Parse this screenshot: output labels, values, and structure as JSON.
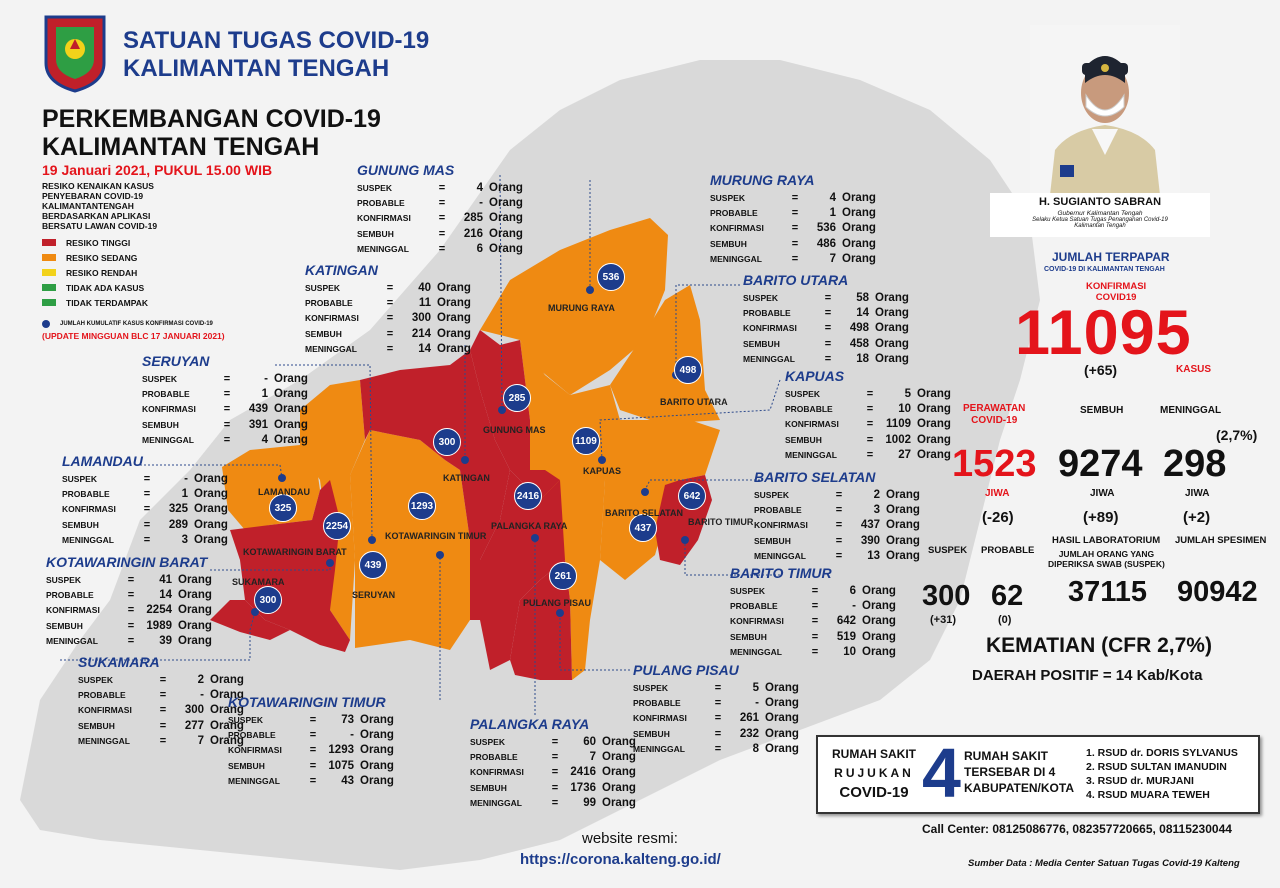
{
  "header": {
    "org_line1": "SATUAN TUGAS COVID-19",
    "org_line2": "KALIMANTAN TENGAH",
    "title_line1": "PERKEMBANGAN COVID-19",
    "title_line2": "KALIMANTAN TENGAH",
    "date": "19 Januari 2021, PUKUL 15.00 WIB"
  },
  "legend": {
    "desc": [
      "RESIKO KENAIKAN KASUS",
      "PENYEBARAN COVID-19",
      "KALIMANTANTENGAH",
      "BERDASARKAN APLIKASI",
      "BERSATU LAWAN COVID-19"
    ],
    "items": [
      {
        "label": "RESIKO TINGGI",
        "color": "#c0202a"
      },
      {
        "label": "RESIKO SEDANG",
        "color": "#ef8a12"
      },
      {
        "label": "RESIKO RENDAH",
        "color": "#f2d21a"
      },
      {
        "label": "TIDAK ADA KASUS",
        "color": "#2e9e44"
      },
      {
        "label": "TIDAK TERDAMPAK",
        "color": "#2e9e44"
      }
    ],
    "dot_note": "JUMLAH KUMULATIF KASUS KONFIRMASI COVID-19",
    "update_note": "(UPDATE MINGGUAN BLC 17 JANUARI 2021)"
  },
  "stat_labels": {
    "suspek": "SUSPEK",
    "probable": "PROBABLE",
    "konfirmasi": "KONFIRMASI",
    "sembuh": "SEMBUH",
    "meninggal": "MENINGGAL",
    "eq": "=",
    "unit": "Orang"
  },
  "districts": [
    {
      "name": "GUNUNG MAS",
      "suspek": "4",
      "probable": "-",
      "konfirmasi": "285",
      "sembuh": "216",
      "meninggal": "6",
      "bubble": "285",
      "map_label": "GUNUNG MAS",
      "risk": "tinggi"
    },
    {
      "name": "MURUNG RAYA",
      "suspek": "4",
      "probable": "1",
      "konfirmasi": "536",
      "sembuh": "486",
      "meninggal": "7",
      "bubble": "536",
      "map_label": "MURUNG RAYA",
      "risk": "sedang"
    },
    {
      "name": "KATINGAN",
      "suspek": "40",
      "probable": "11",
      "konfirmasi": "300",
      "sembuh": "214",
      "meninggal": "14",
      "bubble": "300",
      "map_label": "KATINGAN",
      "risk": "tinggi"
    },
    {
      "name": "BARITO UTARA",
      "suspek": "58",
      "probable": "14",
      "konfirmasi": "498",
      "sembuh": "458",
      "meninggal": "18",
      "bubble": "498",
      "map_label": "BARITO UTARA",
      "risk": "sedang"
    },
    {
      "name": "SERUYAN",
      "suspek": "-",
      "probable": "1",
      "konfirmasi": "439",
      "sembuh": "391",
      "meninggal": "4",
      "bubble": "439",
      "map_label": "SERUYAN",
      "risk": "sedang"
    },
    {
      "name": "KAPUAS",
      "suspek": "5",
      "probable": "10",
      "konfirmasi": "1109",
      "sembuh": "1002",
      "meninggal": "27",
      "bubble": "1109",
      "map_label": "KAPUAS",
      "risk": "sedang"
    },
    {
      "name": "LAMANDAU",
      "suspek": "-",
      "probable": "1",
      "konfirmasi": "325",
      "sembuh": "289",
      "meninggal": "3",
      "bubble": "325",
      "map_label": "LAMANDAU",
      "risk": "sedang"
    },
    {
      "name": "BARITO SELATAN",
      "suspek": "2",
      "probable": "3",
      "konfirmasi": "437",
      "sembuh": "390",
      "meninggal": "13",
      "bubble": "437",
      "map_label": "BARITO SELATAN",
      "risk": "sedang"
    },
    {
      "name": "KOTAWARINGIN BARAT",
      "suspek": "41",
      "probable": "14",
      "konfirmasi": "2254",
      "sembuh": "1989",
      "meninggal": "39",
      "bubble": "2254",
      "map_label": "KOTAWARINGIN BARAT",
      "risk": "tinggi"
    },
    {
      "name": "BARITO TIMUR",
      "suspek": "6",
      "probable": "-",
      "konfirmasi": "642",
      "sembuh": "519",
      "meninggal": "10",
      "bubble": "642",
      "map_label": "BARITO TIMUR",
      "risk": "tinggi"
    },
    {
      "name": "SUKAMARA",
      "suspek": "2",
      "probable": "-",
      "konfirmasi": "300",
      "sembuh": "277",
      "meninggal": "7",
      "bubble": "300",
      "map_label": "SUKAMARA",
      "risk": "tinggi"
    },
    {
      "name": "PULANG PISAU",
      "suspek": "5",
      "probable": "-",
      "konfirmasi": "261",
      "sembuh": "232",
      "meninggal": "8",
      "bubble": "261",
      "map_label": "PULANG PISAU",
      "risk": "tinggi"
    },
    {
      "name": "KOTAWARINGIN TIMUR",
      "suspek": "73",
      "probable": "-",
      "konfirmasi": "1293",
      "sembuh": "1075",
      "meninggal": "43",
      "bubble": "1293",
      "map_label": "KOTAWARINGIN TIMUR",
      "risk": "sedang"
    },
    {
      "name": "PALANGKA RAYA",
      "suspek": "60",
      "probable": "7",
      "konfirmasi": "2416",
      "sembuh": "1736",
      "meninggal": "99",
      "bubble": "2416",
      "map_label": "PALANGKA RAYA",
      "risk": "tinggi"
    }
  ],
  "governor": {
    "name": "H. SUGIANTO SABRAN",
    "title1": "Gubernur Kalimantan Tengah",
    "title2": "Selaku Ketua Satuan Tugas Penanganan Covid-19",
    "title3": "Kalimantan Tengah"
  },
  "summary": {
    "jumlah_title": "JUMLAH TERPAPAR",
    "jumlah_sub": "COVID-19 DI KALIMANTAN TENGAH",
    "konfirmasi_label1": "KONFIRMASI",
    "konfirmasi_label2": "COVID19",
    "konfirmasi_value": "11095",
    "konfirmasi_delta": "(+65)",
    "kasus_label": "KASUS",
    "perawatan_label1": "PERAWATAN",
    "perawatan_label2": "COVID-19",
    "perawatan_value": "1523",
    "perawatan_unit": "JIWA",
    "perawatan_delta": "(-26)",
    "sembuh_label": "SEMBUH",
    "sembuh_value": "9274",
    "sembuh_unit": "JIWA",
    "sembuh_delta": "(+89)",
    "meninggal_label": "MENINGGAL",
    "meninggal_pct": "(2,7%)",
    "meninggal_value": "298",
    "meninggal_unit": "JIWA",
    "meninggal_delta": "(+2)",
    "suspek_label": "SUSPEK",
    "suspek_value": "300",
    "suspek_delta": "(+31)",
    "probable_label": "PROBABLE",
    "probable_value": "62",
    "probable_delta": "(0)",
    "lab_label": "HASIL LABORATORIUM",
    "lab_sub1": "JUMLAH ORANG YANG",
    "lab_sub2": "DIPERIKSA SWAB (SUSPEK)",
    "lab_value": "37115",
    "spesimen_label": "JUMLAH SPESIMEN",
    "spesimen_value": "90942",
    "kematian": "KEMATIAN (CFR 2,7%)",
    "daerah": "DAERAH POSITIF = 14 Kab/Kota"
  },
  "hospital": {
    "left1": "RUMAH SAKIT",
    "left2": "RUJUKAN",
    "left3": "COVID-19",
    "count": "4",
    "mid1": "RUMAH SAKIT",
    "mid2": "TERSEBAR DI 4",
    "mid3": "KABUPATEN/KOTA",
    "list": [
      "1. RSUD dr. DORIS SYLVANUS",
      "2. RSUD SULTAN IMANUDIN",
      "3. RSUD dr. MURJANI",
      "4. RSUD MUARA TEWEH"
    ]
  },
  "footer": {
    "call_label": "Call Center",
    "call_value": ": 08125086776, 082357720665, 08115230044",
    "source": "Sumber Data : Media Center Satuan Tugas Covid-19 Kalteng",
    "website_label": "website resmi:",
    "website_url": "https://corona.kalteng.go.id/"
  },
  "colors": {
    "tinggi": "#c0202a",
    "sedang": "#ef8a12",
    "bubble": "#1d3c8c",
    "title": "#1d3c8c",
    "accent_red": "#e4141b"
  }
}
